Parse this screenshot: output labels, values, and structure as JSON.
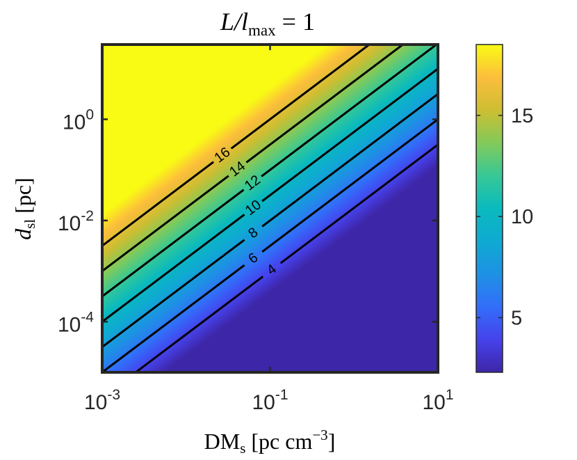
{
  "chart_data": {
    "type": "heatmap",
    "subtype": "filled contour with labeled contour lines",
    "title": "L/l_max = 1",
    "title_parts": {
      "italic_main": "L/l",
      "subscript": "max",
      "suffix": " = 1"
    },
    "xlabel": "DM_s [pc cm^-3]",
    "xlabel_parts": {
      "main": "DM",
      "subscript": "s",
      "suffix": " [pc cm",
      "superscript": "−3",
      "close": "]"
    },
    "ylabel": "d_sl [pc]",
    "ylabel_parts": {
      "italic_main": "d",
      "subscript": "sl",
      "suffix": " [pc]"
    },
    "xscale": "log",
    "yscale": "log",
    "xlim": [
      0.001,
      10
    ],
    "ylim": [
      1e-05,
      30
    ],
    "x_ticks": [
      {
        "value": 0.001,
        "base": "10",
        "exp": "-3"
      },
      {
        "value": 0.1,
        "base": "10",
        "exp": "-1"
      },
      {
        "value": 10,
        "base": "10",
        "exp": "1"
      }
    ],
    "y_ticks": [
      {
        "value": 0.0001,
        "base": "10",
        "exp": "-4"
      },
      {
        "value": 0.01,
        "base": "10",
        "exp": "-2"
      },
      {
        "value": 1,
        "base": "10",
        "exp": "0"
      }
    ],
    "model": "z = 11 + 4·log10(d_sl) − 5·log10(DM_s)",
    "contour_levels": [
      4,
      6,
      8,
      10,
      12,
      14,
      16
    ],
    "contour_labels": [
      "4",
      "6",
      "8",
      "10",
      "12",
      "14",
      "16"
    ],
    "colorbar": {
      "colormap": "parula",
      "range": [
        2.3,
        18.5
      ],
      "ticks": [
        5,
        10,
        15
      ],
      "tick_labels": [
        "5",
        "10",
        "15"
      ]
    },
    "z_range": [
      2.3,
      18.5
    ],
    "grid": false
  }
}
